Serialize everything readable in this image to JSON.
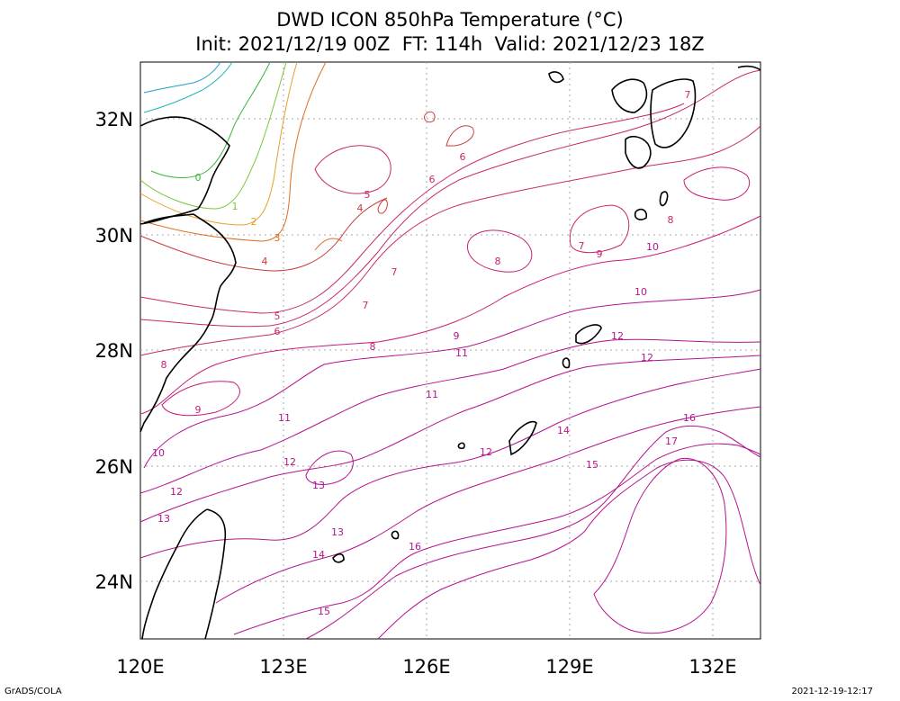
{
  "title": {
    "line1": "DWD ICON 850hPa Temperature (°C)",
    "line2": "Init: 2021/12/19 00Z  FT: 114h  Valid: 2021/12/23 18Z"
  },
  "footer": {
    "left": "GrADS/COLA",
    "right": "2021-12-19-12:17"
  },
  "map": {
    "lon_range": [
      120,
      133
    ],
    "lat_range": [
      23,
      33
    ],
    "x_ticks": [
      "120E",
      "123E",
      "126E",
      "129E",
      "132E"
    ],
    "y_ticks": [
      "32N",
      "30N",
      "28N",
      "26N",
      "24N"
    ],
    "grid": "dotted"
  },
  "contour_labels": [
    "0",
    "1",
    "2",
    "3",
    "4",
    "4",
    "5",
    "5",
    "6",
    "6",
    "6",
    "7",
    "7",
    "7",
    "7",
    "8",
    "8",
    "8",
    "8",
    "9",
    "9",
    "9",
    "10",
    "10",
    "10",
    "11",
    "11",
    "11",
    "12",
    "12",
    "12",
    "12",
    "12",
    "13",
    "13",
    "13",
    "14",
    "14",
    "15",
    "15",
    "16",
    "16",
    "17"
  ],
  "colors": {
    "coastline": "#000000",
    "grid": "#a0a0a0",
    "cold": "#1fa0c8",
    "green": "#3cb43c",
    "yellowgreen": "#a0c83c",
    "orange": "#e6a028",
    "darkorange": "#dc6e1e",
    "red": "#c83c3c",
    "magenta": "#c81e78",
    "purple": "#b4148c"
  }
}
